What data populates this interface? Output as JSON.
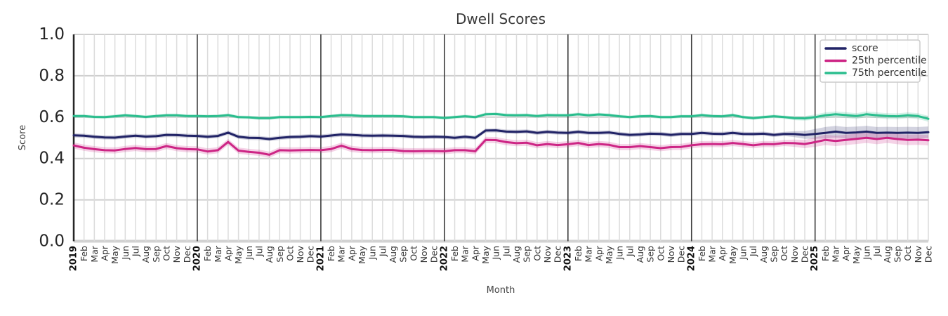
{
  "figure": {
    "background": "#ffffff"
  },
  "chart_data": {
    "type": "line",
    "title": "Dwell Scores",
    "xlabel": "Month",
    "ylabel": "Score",
    "ylim": [
      0.0,
      1.0
    ],
    "grid": true,
    "legend_position": "upper right",
    "y_ticks": {
      "values": [
        0.0,
        0.2,
        0.4,
        0.6,
        0.8,
        1.0
      ],
      "labels": [
        "0.0",
        "0.2",
        "0.4",
        "0.6",
        "0.8",
        "1.0"
      ]
    },
    "x_ticks": [
      "2019",
      "Feb",
      "Mar",
      "Apr",
      "May",
      "Jun",
      "Jul",
      "Aug",
      "Sep",
      "Oct",
      "Nov",
      "Dec",
      "2020",
      "Feb",
      "Mar",
      "Apr",
      "May",
      "Jun",
      "Jul",
      "Aug",
      "Sep",
      "Oct",
      "Nov",
      "Dec",
      "2021",
      "Feb",
      "Mar",
      "Apr",
      "May",
      "Jun",
      "Jul",
      "Aug",
      "Sep",
      "Oct",
      "Nov",
      "Dec",
      "2022",
      "Feb",
      "Mar",
      "Apr",
      "May",
      "Jun",
      "Jul",
      "Aug",
      "Sep",
      "Oct",
      "Nov",
      "Dec",
      "2023",
      "Feb",
      "Mar",
      "Apr",
      "May",
      "Jun",
      "Jul",
      "Aug",
      "Sep",
      "Oct",
      "Nov",
      "Dec",
      "2024",
      "Feb",
      "Mar",
      "Apr",
      "May",
      "Jun",
      "Jul",
      "Aug",
      "Sep",
      "Oct",
      "Nov",
      "Dec",
      "2025",
      "Feb",
      "Mar",
      "Apr",
      "May",
      "Jun",
      "Jul",
      "Aug",
      "Sep",
      "Oct",
      "Nov",
      "Dec"
    ],
    "year_start_indices": [
      0,
      12,
      24,
      36,
      48,
      60,
      72
    ],
    "series": [
      {
        "name": "score",
        "color": "#212366",
        "band": {
          "base": 0.01,
          "end": 0.028,
          "end_start_index": 69
        },
        "values": [
          0.512,
          0.51,
          0.505,
          0.502,
          0.501,
          0.506,
          0.51,
          0.506,
          0.508,
          0.514,
          0.513,
          0.51,
          0.509,
          0.505,
          0.509,
          0.525,
          0.505,
          0.5,
          0.499,
          0.494,
          0.5,
          0.504,
          0.505,
          0.508,
          0.506,
          0.511,
          0.516,
          0.514,
          0.511,
          0.51,
          0.511,
          0.51,
          0.509,
          0.505,
          0.504,
          0.505,
          0.504,
          0.5,
          0.505,
          0.5,
          0.535,
          0.536,
          0.53,
          0.529,
          0.531,
          0.524,
          0.529,
          0.525,
          0.524,
          0.529,
          0.524,
          0.524,
          0.526,
          0.519,
          0.514,
          0.516,
          0.52,
          0.519,
          0.514,
          0.519,
          0.519,
          0.524,
          0.52,
          0.519,
          0.524,
          0.519,
          0.518,
          0.52,
          0.514,
          0.519,
          0.518,
          0.514,
          0.519,
          0.524,
          0.53,
          0.524,
          0.526,
          0.53,
          0.524,
          0.525,
          0.524,
          0.525,
          0.524,
          0.527
        ]
      },
      {
        "name": "25th percentile",
        "color": "#cd2585",
        "band": {
          "base": 0.015,
          "end": 0.025,
          "end_start_index": 69
        },
        "values": [
          0.463,
          0.452,
          0.445,
          0.44,
          0.439,
          0.446,
          0.451,
          0.445,
          0.446,
          0.46,
          0.45,
          0.445,
          0.444,
          0.434,
          0.44,
          0.48,
          0.438,
          0.432,
          0.428,
          0.418,
          0.44,
          0.439,
          0.44,
          0.441,
          0.44,
          0.446,
          0.462,
          0.446,
          0.441,
          0.44,
          0.441,
          0.441,
          0.436,
          0.435,
          0.436,
          0.436,
          0.435,
          0.44,
          0.44,
          0.435,
          0.49,
          0.489,
          0.479,
          0.474,
          0.476,
          0.464,
          0.47,
          0.465,
          0.469,
          0.475,
          0.465,
          0.47,
          0.466,
          0.455,
          0.455,
          0.46,
          0.455,
          0.45,
          0.455,
          0.456,
          0.464,
          0.469,
          0.47,
          0.469,
          0.475,
          0.47,
          0.464,
          0.47,
          0.469,
          0.475,
          0.474,
          0.47,
          0.479,
          0.49,
          0.485,
          0.49,
          0.495,
          0.5,
          0.494,
          0.5,
          0.494,
          0.49,
          0.491,
          0.488
        ]
      },
      {
        "name": "75th percentile",
        "color": "#2abd8d",
        "band": {
          "base": 0.008,
          "end": 0.014,
          "end_start_index": 69
        },
        "values": [
          0.605,
          0.605,
          0.601,
          0.6,
          0.604,
          0.609,
          0.605,
          0.601,
          0.605,
          0.609,
          0.609,
          0.605,
          0.605,
          0.604,
          0.605,
          0.61,
          0.6,
          0.599,
          0.595,
          0.595,
          0.6,
          0.6,
          0.6,
          0.601,
          0.6,
          0.605,
          0.61,
          0.609,
          0.605,
          0.605,
          0.605,
          0.605,
          0.604,
          0.6,
          0.6,
          0.6,
          0.596,
          0.6,
          0.604,
          0.6,
          0.614,
          0.615,
          0.61,
          0.609,
          0.61,
          0.605,
          0.61,
          0.609,
          0.609,
          0.614,
          0.609,
          0.613,
          0.61,
          0.604,
          0.6,
          0.604,
          0.605,
          0.6,
          0.6,
          0.604,
          0.604,
          0.61,
          0.605,
          0.604,
          0.61,
          0.6,
          0.595,
          0.6,
          0.604,
          0.6,
          0.595,
          0.594,
          0.6,
          0.609,
          0.614,
          0.61,
          0.605,
          0.614,
          0.609,
          0.605,
          0.604,
          0.609,
          0.605,
          0.592
        ]
      }
    ]
  }
}
